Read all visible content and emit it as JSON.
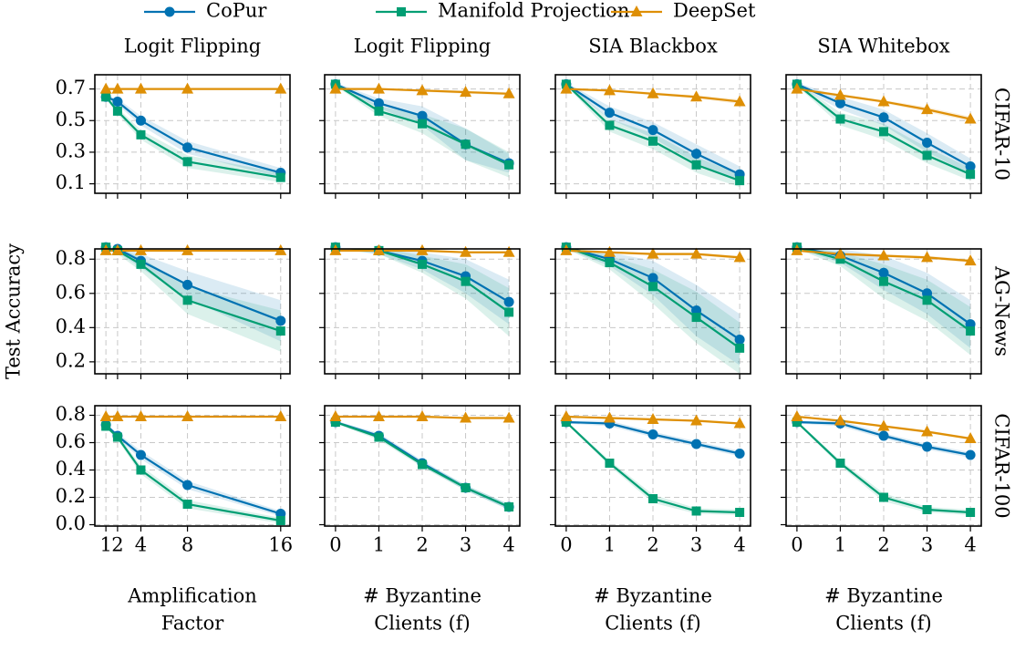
{
  "chart_data": [
    {
      "type": "line",
      "title": "Logit Flipping",
      "x": [
        1,
        2,
        4,
        8,
        16
      ],
      "xlim": [
        0.05,
        16.8
      ],
      "xticks": [
        1,
        2,
        4,
        8,
        16
      ],
      "ylim": [
        0.04,
        0.79
      ],
      "yticks": [
        0.1,
        0.3,
        0.5,
        0.7
      ],
      "grid": true,
      "series": [
        {
          "name": "CoPur",
          "color": "#0072b2",
          "marker": "circle",
          "values": [
            0.65,
            0.62,
            0.5,
            0.33,
            0.17
          ],
          "error": [
            0.01,
            0.02,
            0.03,
            0.04,
            0.03
          ]
        },
        {
          "name": "Manifold Projection",
          "color": "#009e73",
          "marker": "square",
          "values": [
            0.65,
            0.56,
            0.41,
            0.24,
            0.14
          ],
          "error": [
            0.01,
            0.02,
            0.03,
            0.04,
            0.03
          ]
        },
        {
          "name": "DeepSet",
          "color": "#de8f05",
          "marker": "triangle",
          "values": [
            0.7,
            0.7,
            0.7,
            0.7,
            0.7
          ],
          "error": [
            0.005,
            0.005,
            0.005,
            0.005,
            0.005
          ]
        }
      ]
    },
    {
      "type": "line",
      "title": "Logit Flipping",
      "x": [
        0,
        1,
        2,
        3,
        4
      ],
      "xlim": [
        -0.25,
        4.25
      ],
      "xticks": [
        0,
        1,
        2,
        3,
        4
      ],
      "ylim": [
        0.04,
        0.79
      ],
      "yticks": [
        0.1,
        0.3,
        0.5,
        0.7
      ],
      "grid": true,
      "series": [
        {
          "name": "CoPur",
          "color": "#0072b2",
          "marker": "circle",
          "values": [
            0.73,
            0.61,
            0.53,
            0.35,
            0.23
          ],
          "error": [
            0.01,
            0.03,
            0.06,
            0.1,
            0.06
          ]
        },
        {
          "name": "Manifold Projection",
          "color": "#009e73",
          "marker": "square",
          "values": [
            0.73,
            0.56,
            0.48,
            0.35,
            0.22
          ],
          "error": [
            0.01,
            0.03,
            0.06,
            0.1,
            0.08
          ]
        },
        {
          "name": "DeepSet",
          "color": "#de8f05",
          "marker": "triangle",
          "values": [
            0.7,
            0.7,
            0.69,
            0.68,
            0.67
          ],
          "error": [
            0.005,
            0.005,
            0.008,
            0.01,
            0.01
          ]
        }
      ]
    },
    {
      "type": "line",
      "title": "SIA Blackbox",
      "x": [
        0,
        1,
        2,
        3,
        4
      ],
      "xlim": [
        -0.25,
        4.25
      ],
      "xticks": [
        0,
        1,
        2,
        3,
        4
      ],
      "ylim": [
        0.04,
        0.79
      ],
      "yticks": [
        0.1,
        0.3,
        0.5,
        0.7
      ],
      "grid": true,
      "series": [
        {
          "name": "CoPur",
          "color": "#0072b2",
          "marker": "circle",
          "values": [
            0.73,
            0.55,
            0.44,
            0.29,
            0.16
          ],
          "error": [
            0.01,
            0.04,
            0.05,
            0.06,
            0.05
          ]
        },
        {
          "name": "Manifold Projection",
          "color": "#009e73",
          "marker": "square",
          "values": [
            0.73,
            0.47,
            0.37,
            0.22,
            0.12
          ],
          "error": [
            0.01,
            0.04,
            0.05,
            0.05,
            0.04
          ]
        },
        {
          "name": "DeepSet",
          "color": "#de8f05",
          "marker": "triangle",
          "values": [
            0.7,
            0.69,
            0.67,
            0.65,
            0.62
          ],
          "error": [
            0.005,
            0.008,
            0.01,
            0.01,
            0.015
          ]
        }
      ]
    },
    {
      "type": "line",
      "title": "SIA Whitebox",
      "row_label": "CIFAR-10",
      "x": [
        0,
        1,
        2,
        3,
        4
      ],
      "xlim": [
        -0.25,
        4.25
      ],
      "xticks": [
        0,
        1,
        2,
        3,
        4
      ],
      "ylim": [
        0.04,
        0.79
      ],
      "yticks": [
        0.1,
        0.3,
        0.5,
        0.7
      ],
      "grid": true,
      "series": [
        {
          "name": "CoPur",
          "color": "#0072b2",
          "marker": "circle",
          "values": [
            0.73,
            0.61,
            0.52,
            0.36,
            0.21
          ],
          "error": [
            0.01,
            0.04,
            0.05,
            0.06,
            0.05
          ]
        },
        {
          "name": "Manifold Projection",
          "color": "#009e73",
          "marker": "square",
          "values": [
            0.73,
            0.51,
            0.43,
            0.28,
            0.16
          ],
          "error": [
            0.01,
            0.04,
            0.05,
            0.05,
            0.04
          ]
        },
        {
          "name": "DeepSet",
          "color": "#de8f05",
          "marker": "triangle",
          "values": [
            0.7,
            0.66,
            0.62,
            0.57,
            0.51
          ],
          "error": [
            0.005,
            0.01,
            0.01,
            0.015,
            0.015
          ]
        }
      ]
    },
    {
      "type": "line",
      "ylabel": "Test Accuracy",
      "x": [
        1,
        2,
        4,
        8,
        16
      ],
      "xlim": [
        0.05,
        16.8
      ],
      "xticks": [
        1,
        2,
        4,
        8,
        16
      ],
      "ylim": [
        0.13,
        0.86
      ],
      "yticks": [
        0.2,
        0.4,
        0.6,
        0.8
      ],
      "grid": true,
      "series": [
        {
          "name": "CoPur",
          "color": "#0072b2",
          "marker": "circle",
          "values": [
            0.87,
            0.86,
            0.79,
            0.65,
            0.44
          ],
          "error": [
            0.01,
            0.02,
            0.04,
            0.08,
            0.12
          ]
        },
        {
          "name": "Manifold Projection",
          "color": "#009e73",
          "marker": "square",
          "values": [
            0.87,
            0.85,
            0.77,
            0.56,
            0.38
          ],
          "error": [
            0.01,
            0.02,
            0.04,
            0.08,
            0.12
          ]
        },
        {
          "name": "DeepSet",
          "color": "#de8f05",
          "marker": "triangle",
          "values": [
            0.85,
            0.85,
            0.85,
            0.85,
            0.85
          ],
          "error": [
            0.005,
            0.005,
            0.005,
            0.005,
            0.005
          ]
        }
      ]
    },
    {
      "type": "line",
      "x": [
        0,
        1,
        2,
        3,
        4
      ],
      "xlim": [
        -0.25,
        4.25
      ],
      "xticks": [
        0,
        1,
        2,
        3,
        4
      ],
      "ylim": [
        0.13,
        0.86
      ],
      "yticks": [
        0.2,
        0.4,
        0.6,
        0.8
      ],
      "grid": true,
      "series": [
        {
          "name": "CoPur",
          "color": "#0072b2",
          "marker": "circle",
          "values": [
            0.87,
            0.85,
            0.79,
            0.7,
            0.55
          ],
          "error": [
            0.01,
            0.02,
            0.05,
            0.1,
            0.13
          ]
        },
        {
          "name": "Manifold Projection",
          "color": "#009e73",
          "marker": "square",
          "values": [
            0.87,
            0.85,
            0.77,
            0.67,
            0.49
          ],
          "error": [
            0.01,
            0.02,
            0.05,
            0.1,
            0.14
          ]
        },
        {
          "name": "DeepSet",
          "color": "#de8f05",
          "marker": "triangle",
          "values": [
            0.85,
            0.85,
            0.85,
            0.84,
            0.84
          ],
          "error": [
            0.005,
            0.005,
            0.005,
            0.005,
            0.005
          ]
        }
      ]
    },
    {
      "type": "line",
      "x": [
        0,
        1,
        2,
        3,
        4
      ],
      "xlim": [
        -0.25,
        4.25
      ],
      "xticks": [
        0,
        1,
        2,
        3,
        4
      ],
      "ylim": [
        0.13,
        0.86
      ],
      "yticks": [
        0.2,
        0.4,
        0.6,
        0.8
      ],
      "grid": true,
      "series": [
        {
          "name": "CoPur",
          "color": "#0072b2",
          "marker": "circle",
          "values": [
            0.87,
            0.8,
            0.69,
            0.5,
            0.33
          ],
          "error": [
            0.01,
            0.04,
            0.1,
            0.15,
            0.15
          ]
        },
        {
          "name": "Manifold Projection",
          "color": "#009e73",
          "marker": "square",
          "values": [
            0.87,
            0.78,
            0.64,
            0.46,
            0.28
          ],
          "error": [
            0.01,
            0.04,
            0.1,
            0.15,
            0.15
          ]
        },
        {
          "name": "DeepSet",
          "color": "#de8f05",
          "marker": "triangle",
          "values": [
            0.85,
            0.84,
            0.83,
            0.83,
            0.81
          ],
          "error": [
            0.005,
            0.005,
            0.008,
            0.008,
            0.01
          ]
        }
      ]
    },
    {
      "type": "line",
      "row_label": "AG-News",
      "x": [
        0,
        1,
        2,
        3,
        4
      ],
      "xlim": [
        -0.25,
        4.25
      ],
      "xticks": [
        0,
        1,
        2,
        3,
        4
      ],
      "ylim": [
        0.13,
        0.86
      ],
      "yticks": [
        0.2,
        0.4,
        0.6,
        0.8
      ],
      "grid": true,
      "series": [
        {
          "name": "CoPur",
          "color": "#0072b2",
          "marker": "circle",
          "values": [
            0.87,
            0.82,
            0.72,
            0.6,
            0.42
          ],
          "error": [
            0.01,
            0.04,
            0.1,
            0.12,
            0.14
          ]
        },
        {
          "name": "Manifold Projection",
          "color": "#009e73",
          "marker": "square",
          "values": [
            0.87,
            0.8,
            0.67,
            0.56,
            0.38
          ],
          "error": [
            0.01,
            0.04,
            0.1,
            0.12,
            0.14
          ]
        },
        {
          "name": "DeepSet",
          "color": "#de8f05",
          "marker": "triangle",
          "values": [
            0.85,
            0.83,
            0.82,
            0.81,
            0.79
          ],
          "error": [
            0.005,
            0.008,
            0.008,
            0.01,
            0.01
          ]
        }
      ]
    },
    {
      "type": "line",
      "xlabel": [
        "Amplification",
        "Factor"
      ],
      "x": [
        1,
        2,
        4,
        8,
        16
      ],
      "xlim": [
        0.05,
        16.8
      ],
      "xticks": [
        1,
        2,
        4,
        8,
        16
      ],
      "ylim": [
        -0.01,
        0.87
      ],
      "yticks": [
        0.0,
        0.2,
        0.4,
        0.6,
        0.8
      ],
      "grid": true,
      "series": [
        {
          "name": "CoPur",
          "color": "#0072b2",
          "marker": "circle",
          "values": [
            0.73,
            0.65,
            0.51,
            0.29,
            0.08
          ],
          "error": [
            0.01,
            0.02,
            0.03,
            0.03,
            0.02
          ]
        },
        {
          "name": "Manifold Projection",
          "color": "#009e73",
          "marker": "square",
          "values": [
            0.72,
            0.64,
            0.4,
            0.15,
            0.03
          ],
          "error": [
            0.01,
            0.02,
            0.03,
            0.03,
            0.02
          ]
        },
        {
          "name": "DeepSet",
          "color": "#de8f05",
          "marker": "triangle",
          "values": [
            0.79,
            0.79,
            0.79,
            0.79,
            0.79
          ],
          "error": [
            0.005,
            0.005,
            0.005,
            0.005,
            0.005
          ]
        }
      ]
    },
    {
      "type": "line",
      "xlabel": [
        "# Byzantine",
        "Clients (f)"
      ],
      "x": [
        0,
        1,
        2,
        3,
        4
      ],
      "xlim": [
        -0.25,
        4.25
      ],
      "xticks": [
        0,
        1,
        2,
        3,
        4
      ],
      "ylim": [
        -0.01,
        0.87
      ],
      "yticks": [
        0.0,
        0.2,
        0.4,
        0.6,
        0.8
      ],
      "grid": true,
      "series": [
        {
          "name": "CoPur",
          "color": "#0072b2",
          "marker": "circle",
          "values": [
            0.75,
            0.65,
            0.45,
            0.27,
            0.13
          ],
          "error": [
            0.01,
            0.02,
            0.02,
            0.02,
            0.02
          ]
        },
        {
          "name": "Manifold Projection",
          "color": "#009e73",
          "marker": "square",
          "values": [
            0.75,
            0.64,
            0.44,
            0.27,
            0.13
          ],
          "error": [
            0.01,
            0.02,
            0.02,
            0.02,
            0.02
          ]
        },
        {
          "name": "DeepSet",
          "color": "#de8f05",
          "marker": "triangle",
          "values": [
            0.79,
            0.79,
            0.79,
            0.78,
            0.78
          ],
          "error": [
            0.005,
            0.005,
            0.005,
            0.005,
            0.005
          ]
        }
      ]
    },
    {
      "type": "line",
      "xlabel": [
        "# Byzantine",
        "Clients (f)"
      ],
      "x": [
        0,
        1,
        2,
        3,
        4
      ],
      "xlim": [
        -0.25,
        4.25
      ],
      "xticks": [
        0,
        1,
        2,
        3,
        4
      ],
      "ylim": [
        -0.01,
        0.87
      ],
      "yticks": [
        0.0,
        0.2,
        0.4,
        0.6,
        0.8
      ],
      "grid": true,
      "series": [
        {
          "name": "CoPur",
          "color": "#0072b2",
          "marker": "circle",
          "values": [
            0.75,
            0.74,
            0.66,
            0.59,
            0.52
          ],
          "error": [
            0.01,
            0.02,
            0.02,
            0.02,
            0.02
          ]
        },
        {
          "name": "Manifold Projection",
          "color": "#009e73",
          "marker": "square",
          "values": [
            0.75,
            0.45,
            0.19,
            0.1,
            0.09
          ],
          "error": [
            0.01,
            0.02,
            0.03,
            0.02,
            0.02
          ]
        },
        {
          "name": "DeepSet",
          "color": "#de8f05",
          "marker": "triangle",
          "values": [
            0.79,
            0.78,
            0.77,
            0.76,
            0.74
          ],
          "error": [
            0.005,
            0.005,
            0.005,
            0.008,
            0.008
          ]
        }
      ]
    },
    {
      "type": "line",
      "row_label": "CIFAR-100",
      "xlabel": [
        "# Byzantine",
        "Clients (f)"
      ],
      "x": [
        0,
        1,
        2,
        3,
        4
      ],
      "xlim": [
        -0.25,
        4.25
      ],
      "xticks": [
        0,
        1,
        2,
        3,
        4
      ],
      "ylim": [
        -0.01,
        0.87
      ],
      "yticks": [
        0.0,
        0.2,
        0.4,
        0.6,
        0.8
      ],
      "grid": true,
      "series": [
        {
          "name": "CoPur",
          "color": "#0072b2",
          "marker": "circle",
          "values": [
            0.75,
            0.74,
            0.65,
            0.57,
            0.51
          ],
          "error": [
            0.01,
            0.02,
            0.02,
            0.02,
            0.02
          ]
        },
        {
          "name": "Manifold Projection",
          "color": "#009e73",
          "marker": "square",
          "values": [
            0.75,
            0.45,
            0.2,
            0.11,
            0.09
          ],
          "error": [
            0.01,
            0.02,
            0.03,
            0.02,
            0.02
          ]
        },
        {
          "name": "DeepSet",
          "color": "#de8f05",
          "marker": "triangle",
          "values": [
            0.79,
            0.76,
            0.72,
            0.68,
            0.63
          ],
          "error": [
            0.005,
            0.008,
            0.008,
            0.01,
            0.01
          ]
        }
      ]
    }
  ]
}
